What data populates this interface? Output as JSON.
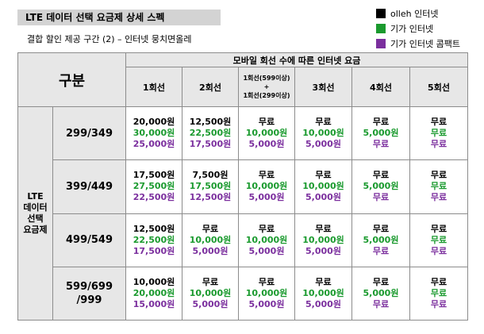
{
  "title": "LTE 데이터 선택 요금제 상세 스펙",
  "subtitle": "결합 할인 제공 구간 (2) – 인터넷 뭉치면올레",
  "legend": [
    {
      "label": "olleh 인터넷",
      "color": "#000000"
    },
    {
      "label": "기가 인터넷",
      "color": "#1a9a2e"
    },
    {
      "label": "기가 인터넷 콤팩트",
      "color": "#7b2f9e"
    }
  ],
  "table": {
    "header_main": "구분",
    "header_group": "모바일 회선 수에 따른 인터넷 요금",
    "columns": [
      "1회선",
      "2회선",
      "1회선(599이상)",
      "+",
      "1회선(299이상)",
      "3회선",
      "4회선",
      "5회선"
    ],
    "row_group": "LTE 데이터 선택 요금제",
    "row_group_lines": [
      "LTE",
      "데이터",
      "선택",
      "요금제"
    ],
    "rows": [
      {
        "plan": "299/349",
        "cells": [
          [
            "20,000원",
            "30,000원",
            "25,000원"
          ],
          [
            "12,500원",
            "22,500원",
            "17,500원"
          ],
          [
            "무료",
            "10,000원",
            "5,000원"
          ],
          [
            "무료",
            "10,000원",
            "5,000원"
          ],
          [
            "무료",
            "5,000원",
            "무료"
          ],
          [
            "무료",
            "무료",
            "무료"
          ]
        ]
      },
      {
        "plan": "399/449",
        "cells": [
          [
            "17,500원",
            "27,500원",
            "22,500원"
          ],
          [
            "7,500원",
            "17,500원",
            "12,500원"
          ],
          [
            "무료",
            "10,000원",
            "5,000원"
          ],
          [
            "무료",
            "10,000원",
            "5,000원"
          ],
          [
            "무료",
            "5,000원",
            "무료"
          ],
          [
            "무료",
            "무료",
            "무료"
          ]
        ]
      },
      {
        "plan": "499/549",
        "cells": [
          [
            "12,500원",
            "22,500원",
            "17,500원"
          ],
          [
            "무료",
            "10,000원",
            "5,000원"
          ],
          [
            "무료",
            "10,000원",
            "5,000원"
          ],
          [
            "무료",
            "10,000원",
            "5,000원"
          ],
          [
            "무료",
            "5,000원",
            "무료"
          ],
          [
            "무료",
            "무료",
            "무료"
          ]
        ]
      },
      {
        "plan": "599/699 /999",
        "plan_lines": [
          "599/699",
          "/999"
        ],
        "cells": [
          [
            "10,000원",
            "20,000원",
            "15,000원"
          ],
          [
            "무료",
            "10,000원",
            "5,000원"
          ],
          [
            "무료",
            "10,000원",
            "5,000원"
          ],
          [
            "무료",
            "10,000원",
            "5,000원"
          ],
          [
            "무료",
            "5,000원",
            "무료"
          ],
          [
            "무료",
            "무료",
            "무료"
          ]
        ]
      }
    ]
  }
}
